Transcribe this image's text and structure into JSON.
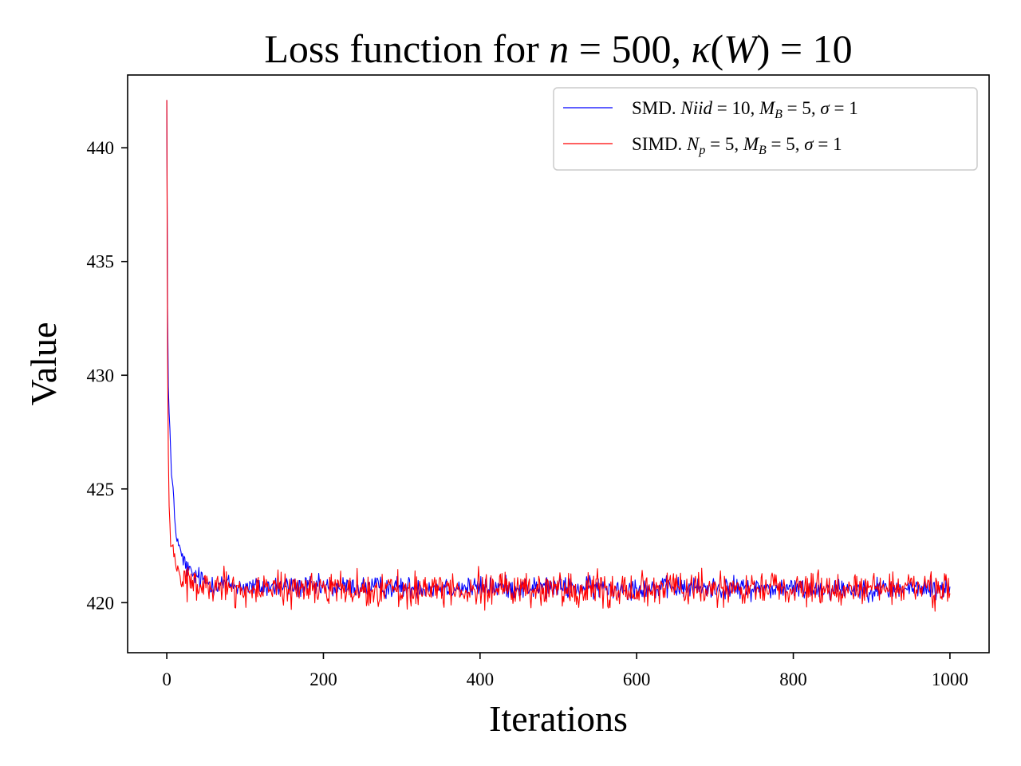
{
  "chart_data": {
    "type": "line",
    "title": "Loss function for n = 500, κ(W) = 10",
    "xlabel": "Iterations",
    "ylabel": "Value",
    "xlim": [
      -50,
      1050
    ],
    "ylim": [
      417.8,
      443.2
    ],
    "xticks": [
      0,
      200,
      400,
      600,
      800,
      1000
    ],
    "yticks": [
      420,
      425,
      430,
      435,
      440
    ],
    "grid": false,
    "legend_position": "top-right",
    "series": [
      {
        "name": "SMD. Niid = 10, M_B = 5, σ = 1",
        "color": "#0000ff",
        "x_range": [
          0,
          1000
        ],
        "anchors": [
          [
            0,
            442.1
          ],
          [
            1,
            433.0
          ],
          [
            2,
            429.5
          ],
          [
            4,
            427.6
          ],
          [
            6,
            425.6
          ],
          [
            8,
            425.0
          ],
          [
            10,
            423.7
          ],
          [
            12,
            423.0
          ],
          [
            15,
            422.6
          ],
          [
            20,
            421.9
          ],
          [
            30,
            421.3
          ],
          [
            50,
            420.9
          ],
          [
            100,
            420.7
          ],
          [
            1000,
            420.6
          ]
        ],
        "noise_amplitude": 0.35
      },
      {
        "name": "SIMD. N_p = 5, M_B = 5, σ = 1",
        "color": "#ff0000",
        "x_range": [
          0,
          1000
        ],
        "anchors": [
          [
            0,
            442.1
          ],
          [
            1,
            431.0
          ],
          [
            2,
            426.5
          ],
          [
            3,
            424.2
          ],
          [
            5,
            422.8
          ],
          [
            8,
            422.3
          ],
          [
            12,
            421.6
          ],
          [
            20,
            421.0
          ],
          [
            40,
            420.7
          ],
          [
            100,
            420.6
          ],
          [
            1000,
            420.6
          ]
        ],
        "noise_amplitude": 0.55
      }
    ]
  },
  "legend": {
    "items": [
      {
        "series": "SMD",
        "prefix": "SMD.",
        "var": "Niid",
        "eq_value": "10",
        "mb": "5",
        "sigma_value": "1"
      },
      {
        "series": "SIMD",
        "prefix": "SIMD.",
        "var": "N",
        "var_sub": "p",
        "eq_value": "5",
        "mb": "5",
        "sigma_value": "1"
      }
    ]
  },
  "title_parts": {
    "prefix": "Loss function for ",
    "n_var": "n",
    "n_value": "500",
    "kappa": "κ",
    "w_var": "W",
    "k_value": "10"
  }
}
